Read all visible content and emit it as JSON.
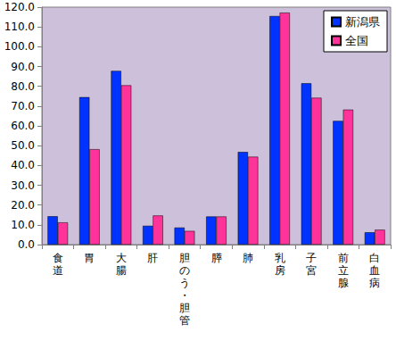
{
  "chart_data": {
    "type": "bar",
    "categories": [
      "食道",
      "胃",
      "大腸",
      "肝",
      "胆のう・胆管",
      "膵",
      "肺",
      "乳房",
      "子宮",
      "前立腺",
      "白血病"
    ],
    "series": [
      {
        "name": "新潟県",
        "color": "#0033ff",
        "values": [
          14.3,
          74.5,
          87.8,
          9.5,
          8.6,
          14.2,
          46.8,
          115.5,
          81.5,
          62.5,
          6.2
        ]
      },
      {
        "name": "全国",
        "color": "#ff3399",
        "values": [
          11.2,
          48.2,
          80.5,
          14.7,
          6.9,
          14.2,
          44.4,
          117.2,
          74.2,
          68.2,
          7.5
        ]
      }
    ],
    "ylim": [
      0,
      120
    ],
    "yticks": [
      {
        "value": 0,
        "label": "0.0"
      },
      {
        "value": 10,
        "label": "10.0"
      },
      {
        "value": 20,
        "label": "20.0"
      },
      {
        "value": 30,
        "label": "30.0"
      },
      {
        "value": 40,
        "label": "40.0"
      },
      {
        "value": 50,
        "label": "50.0"
      },
      {
        "value": 60,
        "label": "60.0"
      },
      {
        "value": 70,
        "label": "70.0"
      },
      {
        "value": 80,
        "label": "80.0"
      },
      {
        "value": 90,
        "label": "90.0"
      },
      {
        "value": 100,
        "label": "100.0"
      },
      {
        "value": 110,
        "label": "110.0"
      },
      {
        "value": 120,
        "label": "120.0"
      }
    ],
    "grid": false,
    "legend": "upper right"
  }
}
